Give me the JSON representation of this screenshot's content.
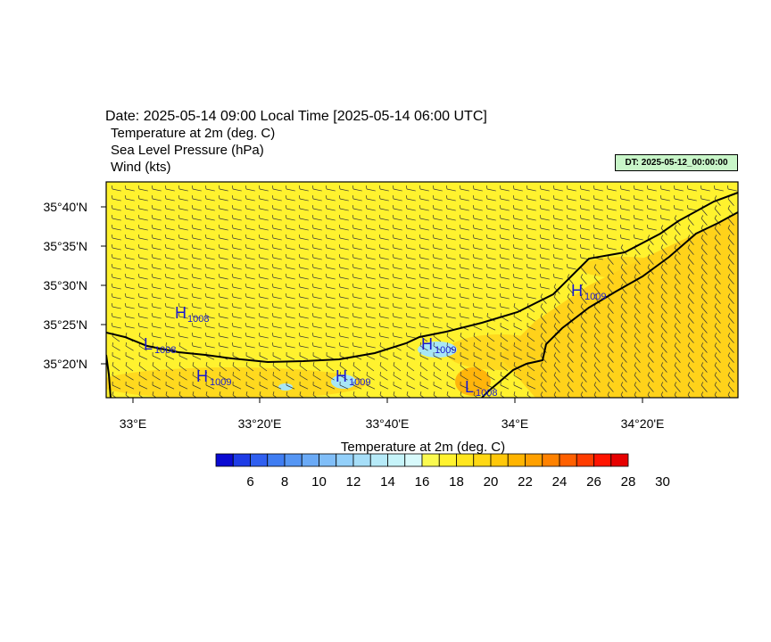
{
  "header": {
    "date_line": "Date: 2025-05-14  09:00 Local Time [2025-05-14  06:00 UTC]",
    "variables": [
      "Temperature at 2m   (deg. C)",
      "Sea Level Pressure   (hPa)",
      "Wind   (kts)"
    ],
    "dt_badge": "DT: 2025-05-12_00:00:00"
  },
  "map": {
    "lat_labels": [
      "35°40'N",
      "35°35'N",
      "35°30'N",
      "35°25'N",
      "35°20'N"
    ],
    "lon_labels": [
      "33°E",
      "33°20'E",
      "33°40'E",
      "34°E",
      "34°20'E"
    ],
    "base_color": "#fff22e",
    "warm_color": "#ffd21a",
    "hot_color": "#ffa000",
    "cool_color": "#a8e6f4",
    "pressure_centers": [
      {
        "letter": "H",
        "value": "1008"
      },
      {
        "letter": "L",
        "value": "1008"
      },
      {
        "letter": "H",
        "value": "1009"
      },
      {
        "letter": "H",
        "value": "1009"
      },
      {
        "letter": "H",
        "value": "1009"
      },
      {
        "letter": "L",
        "value": "1008"
      },
      {
        "letter": "H",
        "value": "1009"
      }
    ]
  },
  "colorbar": {
    "title": "Temperature at 2m  (deg. C)",
    "tick_labels": [
      "6",
      "8",
      "10",
      "12",
      "14",
      "16",
      "18",
      "20",
      "22",
      "24",
      "26",
      "28",
      "30"
    ],
    "colors": [
      "#0a0ad2",
      "#1e3ce6",
      "#2f5ff0",
      "#3f7df2",
      "#5596f4",
      "#6aaaf6",
      "#80bef8",
      "#93d0fa",
      "#a6def8",
      "#b6eaf8",
      "#c6f4fa",
      "#d8fafc",
      "#fafa50",
      "#fff22e",
      "#ffe61e",
      "#ffd814",
      "#ffc80a",
      "#ffb400",
      "#ffa000",
      "#ff8200",
      "#ff6000",
      "#ff3c00",
      "#ff1400",
      "#e60000"
    ]
  }
}
